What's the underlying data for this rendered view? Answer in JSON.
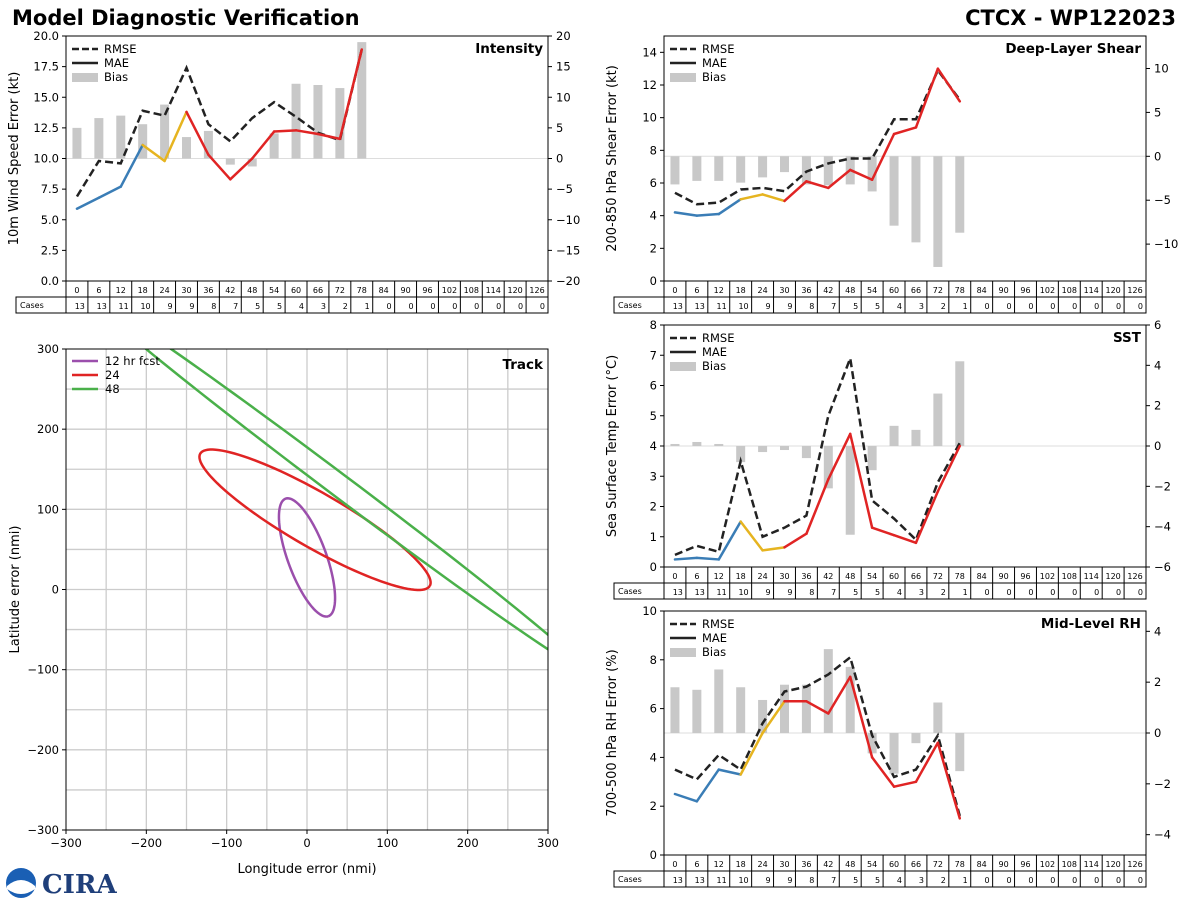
{
  "title_left": "Model Diagnostic Verification",
  "title_right": "CTCX - WP122023",
  "logo_text": "CIRA",
  "colors": {
    "blue": "#3a7db6",
    "gold": "#e6b420",
    "red": "#e02424",
    "rmse": "#222222",
    "bias": "#c8c8c8",
    "purple": "#9b4fac",
    "green": "#4ab04a",
    "grid": "#cccccc"
  },
  "forecast_hours": [
    0,
    6,
    12,
    18,
    24,
    30,
    36,
    42,
    48,
    54,
    60,
    66,
    72,
    78,
    84,
    90,
    96,
    102,
    108,
    114,
    120,
    126
  ],
  "cases_label": "Cases",
  "chart_data": [
    {
      "id": "intensity",
      "type": "line",
      "title": "Intensity",
      "ylabel": "10m Wind Speed Error (kt)",
      "ylim": [
        0,
        20
      ],
      "yticks": [
        0,
        2.5,
        5,
        7.5,
        10,
        12.5,
        15,
        17.5,
        20
      ],
      "ytick_labels": [
        "0.0",
        "2.5",
        "5.0",
        "7.5",
        "10.0",
        "12.5",
        "15.0",
        "17.5",
        "20.0"
      ],
      "y2lim": [
        -20,
        20
      ],
      "y2ticks": [
        -20,
        -15,
        -10,
        -5,
        0,
        5,
        10,
        15,
        20
      ],
      "y2tick_labels": [
        "−20",
        "−15",
        "−10",
        "−5",
        "0",
        "5",
        "10",
        "15",
        "20"
      ],
      "legend": [
        "RMSE",
        "MAE",
        "Bias"
      ],
      "rmse": [
        6.9,
        9.8,
        9.6,
        13.9,
        13.5,
        17.4,
        12.8,
        11.4,
        13.3,
        14.6,
        13.4,
        12.1,
        11.5,
        18.9
      ],
      "mae": [
        5.9,
        6.8,
        7.7,
        11.1,
        9.8,
        13.8,
        10.3,
        8.3,
        10.0,
        12.2,
        12.3,
        12.0,
        11.6,
        18.9
      ],
      "bias": [
        5.0,
        6.6,
        7.0,
        5.6,
        8.8,
        3.5,
        4.5,
        -1.0,
        -1.3,
        4.1,
        12.2,
        12.0,
        11.5,
        19.0
      ],
      "cases": [
        13,
        13,
        11,
        10,
        9,
        9,
        8,
        7,
        5,
        5,
        4,
        3,
        2,
        1,
        0,
        0,
        0,
        0,
        0,
        0,
        0,
        0
      ]
    },
    {
      "id": "shear",
      "type": "line",
      "title": "Deep-Layer Shear",
      "ylabel": "200-850 hPa Shear Error (kt)",
      "ylim": [
        0,
        15
      ],
      "yticks": [
        0,
        2,
        4,
        6,
        8,
        10,
        12,
        14
      ],
      "ytick_labels": [
        "0",
        "2",
        "4",
        "6",
        "8",
        "10",
        "12",
        "14"
      ],
      "y2lim": [
        -14.2,
        13.7
      ],
      "y2ticks": [
        -10,
        -5,
        0,
        5,
        10
      ],
      "y2tick_labels": [
        "−10",
        "−5",
        "0",
        "5",
        "10"
      ],
      "legend": [
        "RMSE",
        "MAE",
        "Bias"
      ],
      "rmse": [
        5.4,
        4.7,
        4.8,
        5.6,
        5.7,
        5.5,
        6.7,
        7.2,
        7.5,
        7.5,
        9.9,
        9.9,
        12.9,
        11.1
      ],
      "mae": [
        4.2,
        4.0,
        4.1,
        5.0,
        5.3,
        4.9,
        6.1,
        5.7,
        6.8,
        6.2,
        9.0,
        9.4,
        13.0,
        11.0
      ],
      "bias": [
        -3.2,
        -2.8,
        -2.8,
        -3.0,
        -2.4,
        -1.8,
        -3.2,
        -3.3,
        -3.2,
        -4.0,
        -7.9,
        -9.8,
        -12.6,
        -8.7
      ],
      "cases": [
        13,
        13,
        11,
        10,
        9,
        9,
        8,
        7,
        5,
        5,
        4,
        3,
        2,
        1,
        0,
        0,
        0,
        0,
        0,
        0,
        0,
        0
      ]
    },
    {
      "id": "sst",
      "type": "line",
      "title": "SST",
      "ylabel": "Sea Surface Temp Error (°C)",
      "ylim": [
        0,
        8
      ],
      "yticks": [
        0,
        1,
        2,
        3,
        4,
        5,
        6,
        7,
        8
      ],
      "ytick_labels": [
        "0",
        "1",
        "2",
        "3",
        "4",
        "5",
        "6",
        "7",
        "8"
      ],
      "y2lim": [
        -6,
        6
      ],
      "y2ticks": [
        -6,
        -4,
        -2,
        0,
        2,
        4,
        6
      ],
      "y2tick_labels": [
        "−6",
        "−4",
        "−2",
        "0",
        "2",
        "4",
        "6"
      ],
      "legend": [
        "RMSE",
        "MAE",
        "Bias"
      ],
      "rmse": [
        0.4,
        0.7,
        0.5,
        3.5,
        1.0,
        1.3,
        1.7,
        5.0,
        6.9,
        2.2,
        1.6,
        0.9,
        2.8,
        4.1
      ],
      "mae": [
        0.25,
        0.3,
        0.25,
        1.5,
        0.55,
        0.65,
        1.1,
        2.9,
        4.4,
        1.3,
        1.05,
        0.8,
        2.5,
        4.0
      ],
      "bias": [
        0.1,
        0.2,
        0.1,
        -0.8,
        -0.3,
        -0.2,
        -0.6,
        -2.1,
        -4.4,
        -1.2,
        1.0,
        0.8,
        2.6,
        4.2
      ],
      "cases": [
        13,
        13,
        11,
        10,
        9,
        9,
        8,
        7,
        5,
        5,
        4,
        3,
        2,
        1,
        0,
        0,
        0,
        0,
        0,
        0,
        0,
        0
      ]
    },
    {
      "id": "rh",
      "type": "line",
      "title": "Mid-Level RH",
      "ylabel": "700-500 hPa RH Error (%)",
      "ylim": [
        0,
        10
      ],
      "yticks": [
        0,
        2,
        4,
        6,
        8,
        10
      ],
      "ytick_labels": [
        "0",
        "2",
        "4",
        "6",
        "8",
        "10"
      ],
      "y2lim": [
        -4.8,
        4.8
      ],
      "y2ticks": [
        -4,
        -2,
        0,
        2,
        4
      ],
      "y2tick_labels": [
        "−4",
        "−2",
        "0",
        "2",
        "4"
      ],
      "legend": [
        "RMSE",
        "MAE",
        "Bias"
      ],
      "rmse": [
        3.5,
        3.1,
        4.1,
        3.5,
        5.4,
        6.7,
        6.9,
        7.4,
        8.1,
        4.9,
        3.2,
        3.5,
        4.9,
        1.6
      ],
      "mae": [
        2.5,
        2.2,
        3.5,
        3.3,
        5.0,
        6.3,
        6.3,
        5.8,
        7.3,
        4.0,
        2.8,
        3.0,
        4.6,
        1.5
      ],
      "bias": [
        1.8,
        1.7,
        2.5,
        1.8,
        1.3,
        1.9,
        1.9,
        3.3,
        2.6,
        -0.8,
        -1.6,
        -0.4,
        1.2,
        -1.5
      ],
      "cases": [
        13,
        13,
        11,
        10,
        9,
        9,
        8,
        7,
        5,
        5,
        4,
        3,
        2,
        1,
        0,
        0,
        0,
        0,
        0,
        0,
        0,
        0
      ]
    },
    {
      "id": "track",
      "type": "line",
      "title": "Track",
      "xlabel": "Longitude error (nmi)",
      "ylabel": "Latitude error (nmi)",
      "xlim": [
        -300,
        300
      ],
      "ylim": [
        -300,
        300
      ],
      "xticks": [
        -300,
        -200,
        -100,
        0,
        100,
        200,
        300
      ],
      "xtick_labels": [
        "−300",
        "−200",
        "−100",
        "0",
        "100",
        "200",
        "300"
      ],
      "yticks": [
        -300,
        -200,
        -100,
        0,
        100,
        200,
        300
      ],
      "ytick_labels": [
        "−300",
        "−200",
        "−100",
        "0",
        "100",
        "200",
        "300"
      ],
      "legend": [
        "12 hr fcst",
        "24",
        "48"
      ],
      "ellipses": [
        {
          "name": "12 hr fcst",
          "center": [
            0,
            40
          ],
          "a": 78,
          "b": 24,
          "angle_deg": -70
        },
        {
          "name": "24",
          "center": [
            10,
            87
          ],
          "a": 165,
          "b": 34,
          "angle_deg": -30
        },
        {
          "name": "48",
          "center": [
            40,
            130
          ],
          "a": 380,
          "b": 14,
          "angle_deg": -37
        }
      ]
    }
  ]
}
